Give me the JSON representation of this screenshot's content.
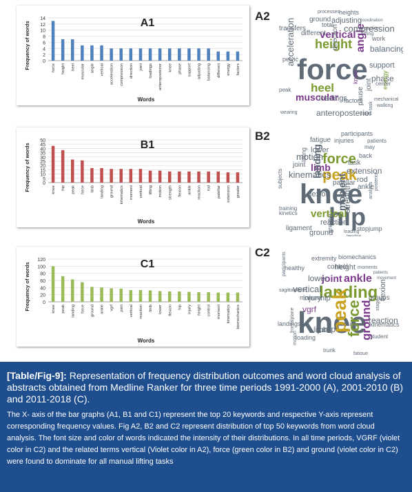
{
  "charts": [
    {
      "label": "A1",
      "ylabel": "Frequency of words",
      "xlabel": "Words"
    },
    {
      "label": "B1",
      "ylabel": "Frequency of words",
      "xlabel": "Words"
    },
    {
      "label": "C1",
      "ylabel": "Frequency of words",
      "xlabel": "Words"
    }
  ],
  "chart_data": [
    {
      "type": "bar",
      "title": "A1",
      "xlabel": "Words",
      "ylabel": "Frequency of words",
      "ylim": [
        0,
        14
      ],
      "yticks": [
        0,
        2,
        4,
        6,
        8,
        10,
        12,
        14
      ],
      "grid": true,
      "color": "#4f81bd",
      "categories": [
        "force",
        "height",
        "heel",
        "muscular",
        "angle",
        "vertical",
        "acceleration",
        "compression",
        "direction",
        "joint",
        "loadings",
        "anteroposterior",
        "knee",
        "phase",
        "support",
        "adjusting",
        "balancing",
        "different",
        "energy",
        "factors"
      ],
      "values": [
        13,
        7,
        7,
        5,
        5,
        5,
        4,
        4,
        4,
        4,
        4,
        4,
        4,
        4,
        4,
        4,
        4,
        3,
        3,
        3
      ]
    },
    {
      "type": "bar",
      "title": "B1",
      "xlabel": "Words",
      "ylabel": "Frequency of words",
      "ylim": [
        0,
        50
      ],
      "yticks": [
        0,
        5,
        10,
        15,
        20,
        25,
        30,
        35,
        40,
        45,
        50
      ],
      "grid": true,
      "color": "#c0504d",
      "categories": [
        "knee",
        "hip",
        "peak",
        "force",
        "limb",
        "landing",
        "ground",
        "kinematics",
        "moment",
        "vertical",
        "lifting",
        "motion",
        "strength",
        "flexion",
        "ankle",
        "reaction",
        "rod",
        "patellar",
        "extension",
        "greater"
      ],
      "values": [
        43,
        38,
        27,
        26,
        17,
        17,
        16,
        16,
        16,
        16,
        14,
        14,
        13,
        13,
        13,
        13,
        13,
        13,
        12,
        12
      ]
    },
    {
      "type": "bar",
      "title": "C1",
      "xlabel": "Words",
      "ylabel": "Frequency of words",
      "ylim": [
        0,
        120
      ],
      "yticks": [
        0,
        20,
        40,
        60,
        80,
        100,
        120
      ],
      "grid": true,
      "color": "#9bbb59",
      "categories": [
        "knee",
        "peak",
        "landing",
        "force",
        "ground",
        "ankle",
        "vgrf",
        "joint",
        "vertical",
        "reaction",
        "limb",
        "lower",
        "flexion",
        "hip",
        "injury",
        "height",
        "control",
        "moment",
        "kinematics",
        "biomechanics"
      ],
      "values": [
        100,
        72,
        63,
        55,
        42,
        40,
        38,
        37,
        33,
        33,
        32,
        30,
        29,
        29,
        28,
        27,
        27,
        26,
        26,
        26
      ]
    }
  ],
  "clouds": [
    {
      "label": "A2",
      "words": [
        {
          "t": "force",
          "c": "#5f6b77"
        },
        {
          "t": "height",
          "c": "#7a9a2f"
        },
        {
          "t": "heel",
          "c": "#7a9a2f"
        },
        {
          "t": "angle",
          "c": "#7b3a8c"
        },
        {
          "t": "muscular",
          "c": "#7b3a8c"
        },
        {
          "t": "vertical",
          "c": "#7b3a8c"
        },
        {
          "t": "acceleration",
          "c": "#5f6b77"
        },
        {
          "t": "anteroposterior",
          "c": "#5f6b77"
        },
        {
          "t": "compression",
          "c": "#5f6b77"
        },
        {
          "t": "balancing",
          "c": "#5f6b77"
        },
        {
          "t": "phase",
          "c": "#5f6b77"
        },
        {
          "t": "support",
          "c": "#5f6b77"
        },
        {
          "t": "adjusting",
          "c": "#5f6b77"
        },
        {
          "t": "loadings",
          "c": "#5f6b77"
        },
        {
          "t": "direction",
          "c": "#5f6b77"
        },
        {
          "t": "joint",
          "c": "#5f6b77"
        },
        {
          "t": "knee",
          "c": "#7b3a8c"
        },
        {
          "t": "different",
          "c": "#5f6b77"
        },
        {
          "t": "standing",
          "c": "#5f6b77"
        },
        {
          "t": "phases",
          "c": "#5f6b77"
        },
        {
          "t": "energy",
          "c": "#7a9a2f"
        },
        {
          "t": "ground",
          "c": "#5f6b77"
        },
        {
          "t": "transfers",
          "c": "#5f6b77"
        },
        {
          "t": "total",
          "c": "#5f6b77"
        },
        {
          "t": "factors",
          "c": "#5f6b77"
        },
        {
          "t": "heights",
          "c": "#5f6b77"
        },
        {
          "t": "processes",
          "c": "#5f6b77"
        },
        {
          "t": "work",
          "c": "#5f6b77"
        },
        {
          "t": "center",
          "c": "#5f6b77"
        },
        {
          "t": "pelvic",
          "c": "#5f6b77"
        },
        {
          "t": "pause",
          "c": "#5f6b77"
        },
        {
          "t": "mechanical",
          "c": "#5f6b77"
        },
        {
          "t": "lifting",
          "c": "#5f6b77"
        },
        {
          "t": "reaction",
          "c": "#5f6b77"
        },
        {
          "t": "coordination",
          "c": "#5f6b77"
        },
        {
          "t": "walking",
          "c": "#5f6b77"
        },
        {
          "t": "wearing",
          "c": "#5f6b77"
        },
        {
          "t": "times",
          "c": "#5f6b77"
        },
        {
          "t": "peak",
          "c": "#5f6b77"
        },
        {
          "t": "task",
          "c": "#5f6b77"
        }
      ]
    },
    {
      "label": "B2",
      "words": [
        {
          "t": "knee",
          "c": "#5f6b77"
        },
        {
          "t": "hip",
          "c": "#5f6b77"
        },
        {
          "t": "peak",
          "c": "#c9a21f"
        },
        {
          "t": "force",
          "c": "#7a9a2f"
        },
        {
          "t": "limb",
          "c": "#7b3a8c"
        },
        {
          "t": "landing",
          "c": "#5f6b77"
        },
        {
          "t": "vertical",
          "c": "#7a9a2f"
        },
        {
          "t": "kinematics",
          "c": "#5f6b77"
        },
        {
          "t": "motion",
          "c": "#5f6b77"
        },
        {
          "t": "extension",
          "c": "#5f6b77"
        },
        {
          "t": "moment",
          "c": "#5f6b77"
        },
        {
          "t": "ground",
          "c": "#5f6b77"
        },
        {
          "t": "strength",
          "c": "#5f6b77"
        },
        {
          "t": "patellar",
          "c": "#5f6b77"
        },
        {
          "t": "flexion",
          "c": "#5f6b77"
        },
        {
          "t": "reaction",
          "c": "#5f6b77"
        },
        {
          "t": "ligament",
          "c": "#5f6b77"
        },
        {
          "t": "rod",
          "c": "#5f6b77"
        },
        {
          "t": "ankle",
          "c": "#5f6b77"
        },
        {
          "t": "lower",
          "c": "#5f6b77"
        },
        {
          "t": "joint",
          "c": "#5f6b77"
        },
        {
          "t": "task",
          "c": "#5f6b77"
        },
        {
          "t": "injuries",
          "c": "#5f6b77"
        },
        {
          "t": "participants",
          "c": "#5f6b77"
        },
        {
          "t": "fatigue",
          "c": "#5f6b77"
        },
        {
          "t": "lifting",
          "c": "#5f6b77"
        },
        {
          "t": "patients",
          "c": "#5f6b77"
        },
        {
          "t": "back",
          "c": "#5f6b77"
        },
        {
          "t": "training",
          "c": "#5f6b77"
        },
        {
          "t": "kinetics",
          "c": "#5f6b77"
        },
        {
          "t": "athletes",
          "c": "#5f6b77"
        },
        {
          "t": "controls",
          "c": "#5f6b77"
        },
        {
          "t": "stopjump",
          "c": "#5f6b77"
        },
        {
          "t": "tendon",
          "c": "#5f6b77"
        },
        {
          "t": "greater",
          "c": "#5f6b77"
        },
        {
          "t": "subjects",
          "c": "#5f6b77"
        },
        {
          "t": "may",
          "c": "#5f6b77"
        },
        {
          "t": "posterior",
          "c": "#5f6b77"
        },
        {
          "t": "analysis",
          "c": "#5f6b77"
        },
        {
          "t": "loading",
          "c": "#5f6b77"
        }
      ]
    },
    {
      "label": "C2",
      "words": [
        {
          "t": "knee",
          "c": "#5f6b77"
        },
        {
          "t": "landing",
          "c": "#7a9a2f"
        },
        {
          "t": "peak",
          "c": "#c9a21f"
        },
        {
          "t": "force",
          "c": "#7a9a2f"
        },
        {
          "t": "ground",
          "c": "#7b3a8c"
        },
        {
          "t": "vgrf",
          "c": "#7b3a8c"
        },
        {
          "t": "ankle",
          "c": "#7b3a8c"
        },
        {
          "t": "joint",
          "c": "#7b3a8c"
        },
        {
          "t": "vertical",
          "c": "#5f6b77"
        },
        {
          "t": "reaction",
          "c": "#5f6b77"
        },
        {
          "t": "limb",
          "c": "#5f6b77"
        },
        {
          "t": "lower",
          "c": "#5f6b77"
        },
        {
          "t": "flexion",
          "c": "#5f6b77"
        },
        {
          "t": "hip",
          "c": "#5f6b77"
        },
        {
          "t": "injury",
          "c": "#5f6b77"
        },
        {
          "t": "height",
          "c": "#5f6b77"
        },
        {
          "t": "control",
          "c": "#5f6b77"
        },
        {
          "t": "moment",
          "c": "#5f6b77"
        },
        {
          "t": "kinematics",
          "c": "#5f6b77"
        },
        {
          "t": "biomechanics",
          "c": "#5f6b77"
        },
        {
          "t": "student",
          "c": "#5f6b77"
        },
        {
          "t": "groups",
          "c": "#5f6b77"
        },
        {
          "t": "jump",
          "c": "#5f6b77"
        },
        {
          "t": "healthy",
          "c": "#5f6b77"
        },
        {
          "t": "extremity",
          "c": "#5f6b77"
        },
        {
          "t": "landings",
          "c": "#5f6b77"
        },
        {
          "t": "participants",
          "c": "#5f6b77"
        },
        {
          "t": "sagittalplane",
          "c": "#5f6b77"
        },
        {
          "t": "moments",
          "c": "#5f6b77"
        },
        {
          "t": "patients",
          "c": "#5f6b77"
        },
        {
          "t": "loading",
          "c": "#5f6b77"
        },
        {
          "t": "individuals",
          "c": "#5f6b77"
        },
        {
          "t": "women",
          "c": "#5f6b77"
        },
        {
          "t": "trunk",
          "c": "#5f6b77"
        },
        {
          "t": "frontalplane",
          "c": "#5f6b77"
        },
        {
          "t": "fatigue",
          "c": "#5f6b77"
        },
        {
          "t": "using",
          "c": "#5f6b77"
        },
        {
          "t": "motion",
          "c": "#5f6b77"
        },
        {
          "t": "movement",
          "c": "#5f6b77"
        },
        {
          "t": "stage",
          "c": "#5f6b77"
        }
      ]
    }
  ],
  "caption": {
    "tag": "[Table/Fig-9]:",
    "title": "Representation of frequency distribution outcomes and word cloud analysis of abstracts obtained from Medline Ranker for three time periods 1991-2000 (A), 2001-2010 (B) and 2011-2018 (C).",
    "body": "The X- axis of the bar graphs (A1, B1 and C1) represent the top 20 keywords and respective Y-axis represent corresponding frequency values. Fig A2, B2 and C2 represent distribution of top 50 keywords from word cloud analysis. The font size and color of words indicated the intensity of their distributions. In all time periods, VGRF (violet color in C2) and the related terms vertical (Violet color in A2), force (green color in B2) and ground (violet color in C2) were found to dominate for all manual lifting tasks"
  }
}
